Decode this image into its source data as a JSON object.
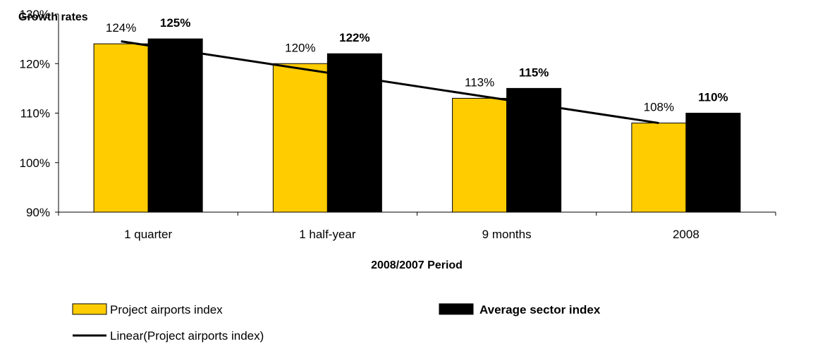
{
  "chart_data": {
    "type": "bar",
    "ylabel": "Growth rates",
    "xlabel": "2008/2007 Period",
    "categories": [
      "1 quarter",
      "1 half-year",
      "9 months",
      "2008"
    ],
    "ylim": [
      90,
      130
    ],
    "yticks": [
      90,
      100,
      110,
      120,
      130
    ],
    "ytick_labels": [
      "90%",
      "100%",
      "110%",
      "120%",
      "130%"
    ],
    "grid": false,
    "legend_position": "bottom-left",
    "series": [
      {
        "name": "Project airports index",
        "values": [
          124,
          120,
          113,
          108
        ],
        "labels": [
          "124%",
          "120%",
          "113%",
          "108%"
        ],
        "color": "#FFCC00",
        "label_bold": false
      },
      {
        "name": "Average sector index",
        "values": [
          125,
          122,
          115,
          110
        ],
        "labels": [
          "125%",
          "122%",
          "115%",
          "110%"
        ],
        "color": "#000000",
        "label_bold": true
      }
    ],
    "trendline": {
      "name": "Linear(Project airports index)",
      "of_series": "Project airports index",
      "color": "#000000"
    }
  }
}
